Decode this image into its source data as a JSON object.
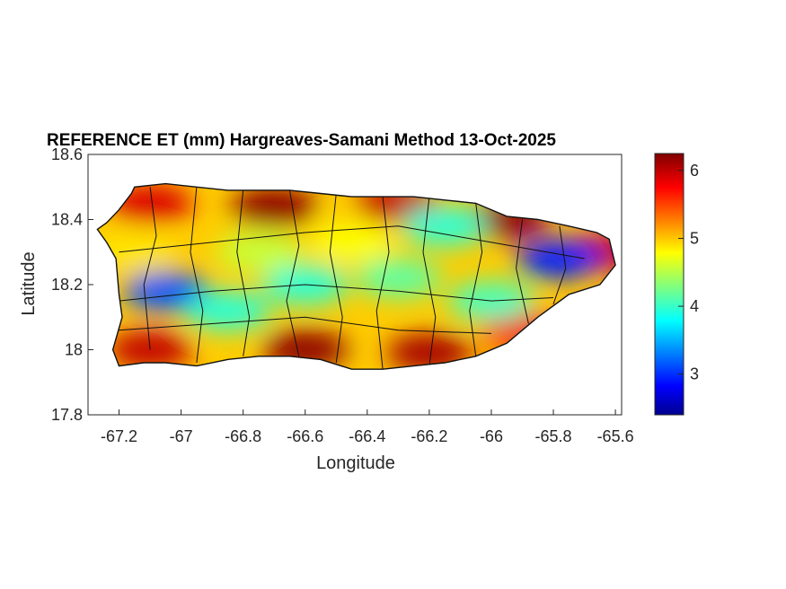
{
  "chart_data": {
    "type": "heatmap",
    "title": "REFERENCE ET (mm) Hargreaves-Samani Method  13-Oct-2025",
    "xlabel": "Longitude",
    "ylabel": "Latitude",
    "xlim": [
      -67.3,
      -65.58
    ],
    "ylim": [
      17.8,
      18.6
    ],
    "x_ticks": [
      -67.2,
      -67,
      -66.8,
      -66.6,
      -66.4,
      -66.2,
      -66,
      -65.8,
      -65.6
    ],
    "x_tick_labels": [
      "-67.2",
      "-67",
      "-66.8",
      "-66.6",
      "-66.4",
      "-66.2",
      "-66",
      "-65.8",
      "-65.6"
    ],
    "y_ticks": [
      17.8,
      18,
      18.2,
      18.4,
      18.6
    ],
    "y_tick_labels": [
      "17.8",
      "18",
      "18.2",
      "18.4",
      "18.6"
    ],
    "colorbar": {
      "colormap": "jet",
      "range": [
        2.4,
        6.25
      ],
      "ticks": [
        3,
        4,
        5,
        6
      ],
      "tick_labels": [
        "3",
        "4",
        "5",
        "6"
      ]
    },
    "island_outline": [
      [
        -67.27,
        18.37
      ],
      [
        -67.24,
        18.39
      ],
      [
        -67.2,
        18.43
      ],
      [
        -67.16,
        18.48
      ],
      [
        -67.15,
        18.5
      ],
      [
        -67.05,
        18.51
      ],
      [
        -66.95,
        18.5
      ],
      [
        -66.85,
        18.49
      ],
      [
        -66.75,
        18.49
      ],
      [
        -66.65,
        18.49
      ],
      [
        -66.55,
        18.48
      ],
      [
        -66.45,
        18.47
      ],
      [
        -66.35,
        18.47
      ],
      [
        -66.25,
        18.47
      ],
      [
        -66.15,
        18.46
      ],
      [
        -66.05,
        18.45
      ],
      [
        -65.95,
        18.41
      ],
      [
        -65.85,
        18.4
      ],
      [
        -65.75,
        18.38
      ],
      [
        -65.66,
        18.36
      ],
      [
        -65.62,
        18.34
      ],
      [
        -65.6,
        18.26
      ],
      [
        -65.65,
        18.2
      ],
      [
        -65.75,
        18.17
      ],
      [
        -65.85,
        18.1
      ],
      [
        -65.95,
        18.02
      ],
      [
        -66.05,
        17.98
      ],
      [
        -66.15,
        17.96
      ],
      [
        -66.25,
        17.95
      ],
      [
        -66.35,
        17.94
      ],
      [
        -66.45,
        17.94
      ],
      [
        -66.55,
        17.97
      ],
      [
        -66.65,
        17.98
      ],
      [
        -66.75,
        17.98
      ],
      [
        -66.85,
        17.97
      ],
      [
        -66.95,
        17.95
      ],
      [
        -67.05,
        17.96
      ],
      [
        -67.12,
        17.96
      ],
      [
        -67.2,
        17.95
      ],
      [
        -67.22,
        18.0
      ],
      [
        -67.19,
        18.1
      ],
      [
        -67.2,
        18.17
      ],
      [
        -67.21,
        18.28
      ],
      [
        -67.24,
        18.33
      ]
    ],
    "heat_centers": [
      {
        "lon": -66.7,
        "lat": 18.44,
        "value": 6.2
      },
      {
        "lon": -66.3,
        "lat": 18.45,
        "value": 6.0
      },
      {
        "lon": -65.95,
        "lat": 18.4,
        "value": 6.2
      },
      {
        "lon": -65.65,
        "lat": 18.3,
        "value": 6.0
      },
      {
        "lon": -67.1,
        "lat": 18.45,
        "value": 5.9
      },
      {
        "lon": -66.6,
        "lat": 18.0,
        "value": 6.2
      },
      {
        "lon": -66.2,
        "lat": 17.99,
        "value": 6.1
      },
      {
        "lon": -67.1,
        "lat": 18.0,
        "value": 6.0
      },
      {
        "lon": -65.9,
        "lat": 18.06,
        "value": 5.8
      },
      {
        "lon": -67.05,
        "lat": 18.18,
        "value": 3.2
      },
      {
        "lon": -66.6,
        "lat": 18.2,
        "value": 4.0
      },
      {
        "lon": -66.3,
        "lat": 18.22,
        "value": 4.2
      },
      {
        "lon": -66.15,
        "lat": 18.38,
        "value": 4.0
      },
      {
        "lon": -65.78,
        "lat": 18.28,
        "value": 3.0
      },
      {
        "lon": -66.0,
        "lat": 18.15,
        "value": 4.1
      },
      {
        "lon": -66.85,
        "lat": 18.12,
        "value": 4.0
      },
      {
        "lon": -66.75,
        "lat": 18.3,
        "value": 4.6
      },
      {
        "lon": -66.45,
        "lat": 18.33,
        "value": 4.8
      },
      {
        "lon": -67.15,
        "lat": 18.3,
        "value": 4.9
      }
    ]
  }
}
